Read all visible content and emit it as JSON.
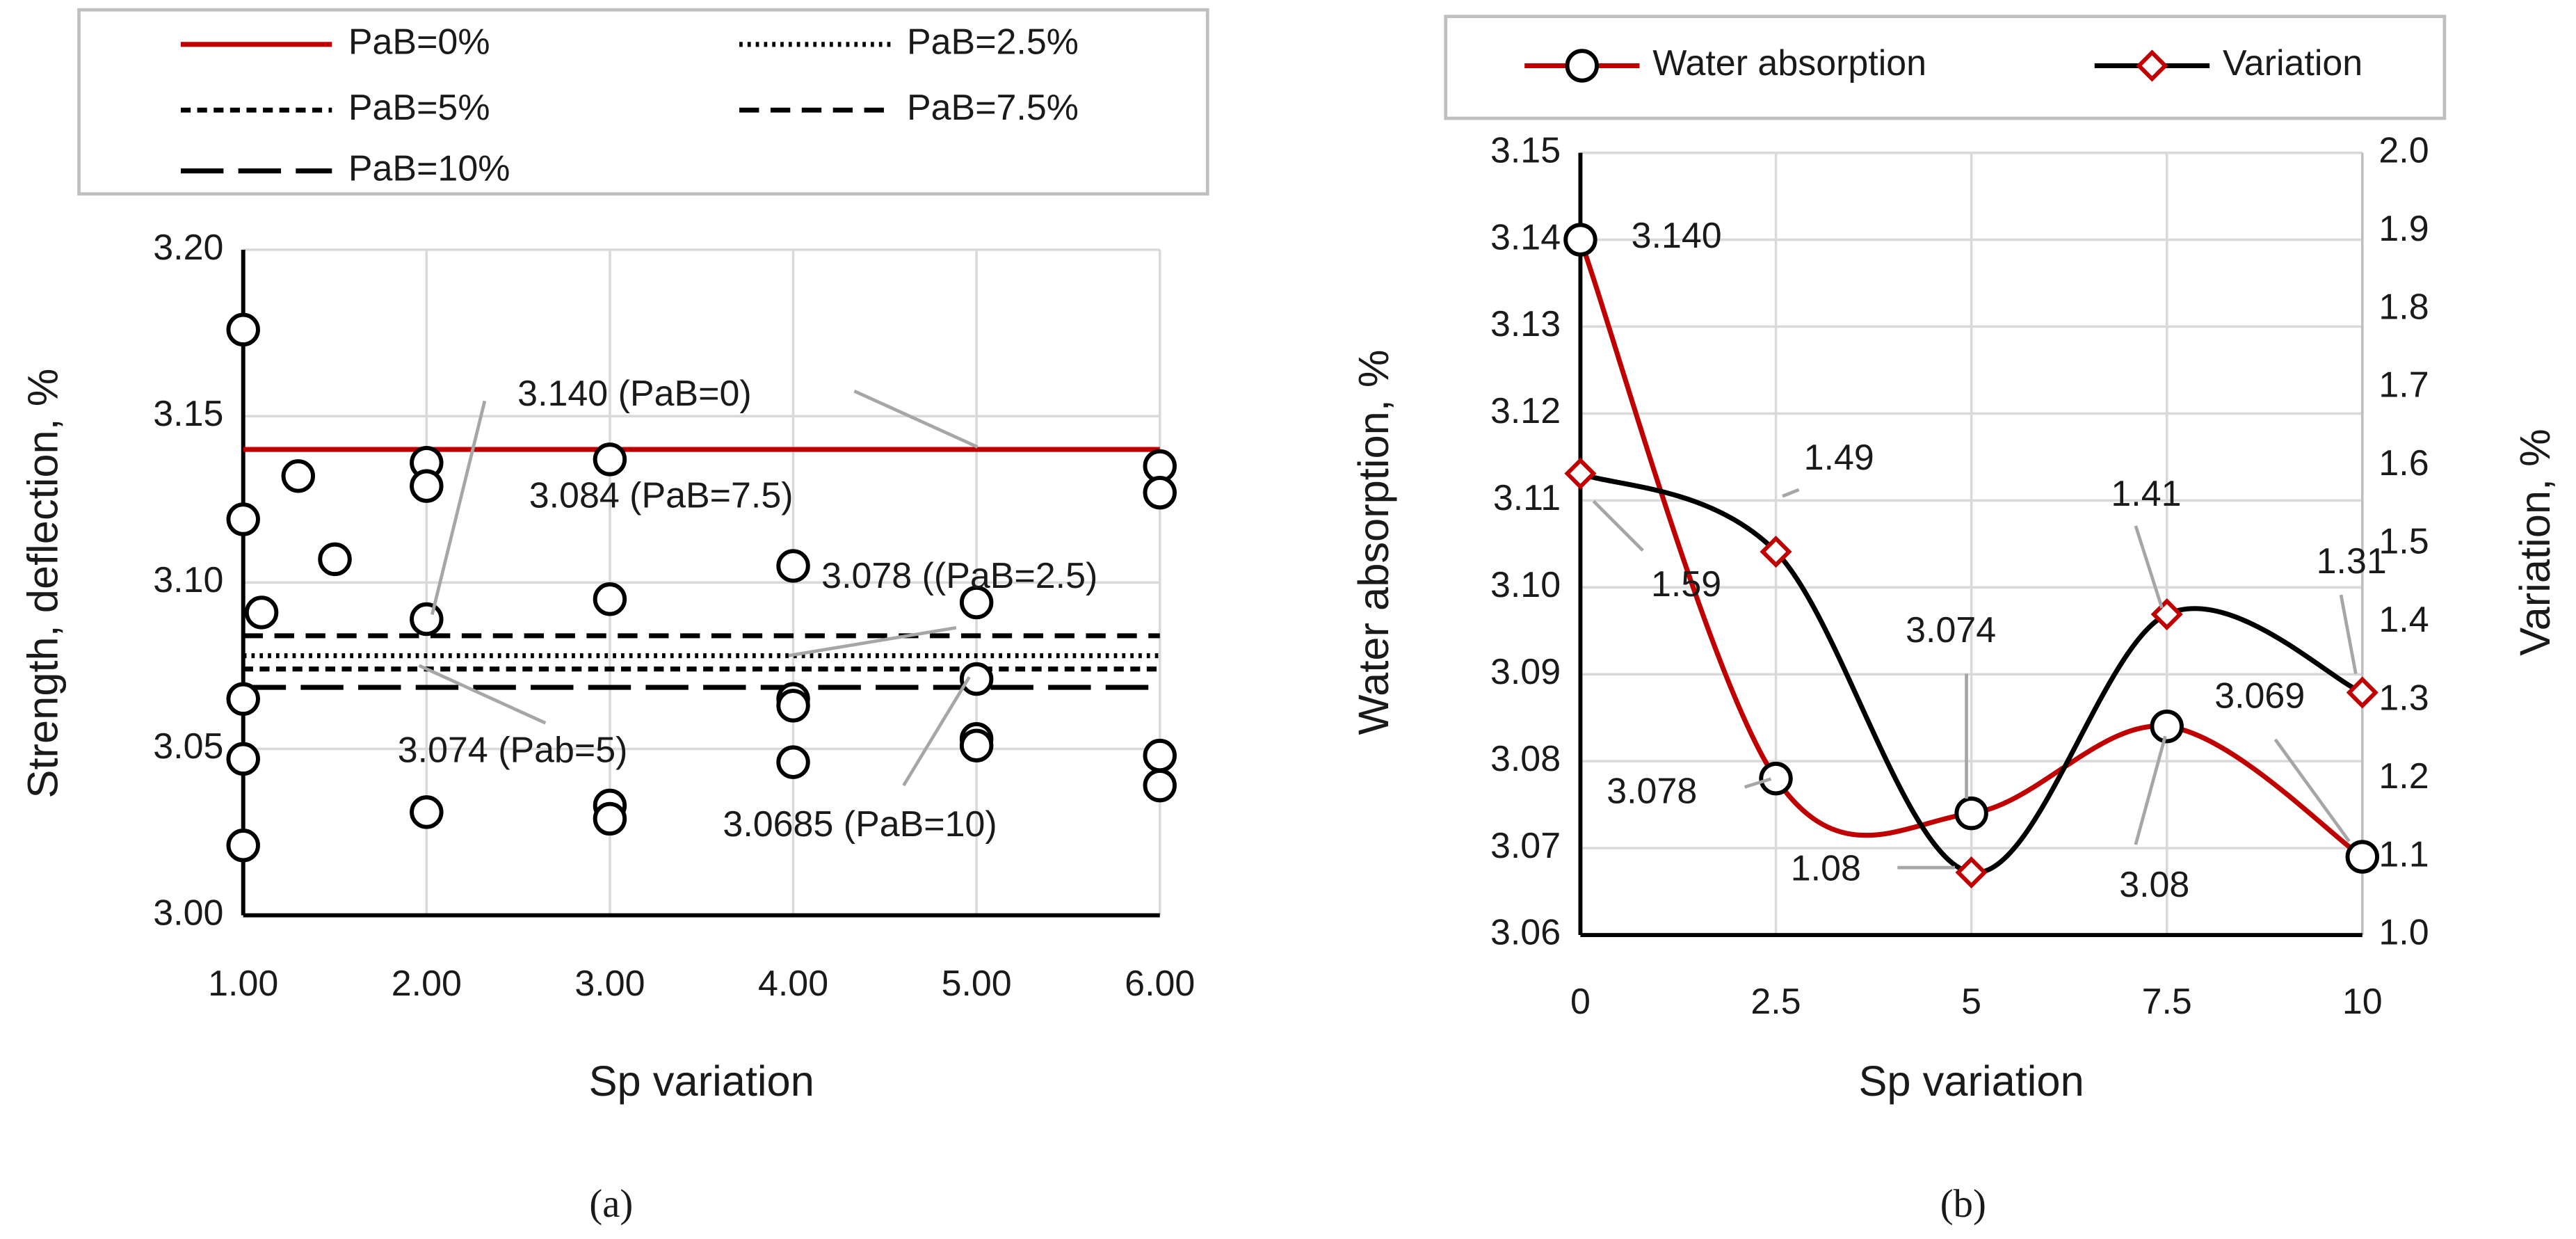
{
  "chart_data": [
    {
      "type": "scatter",
      "x_label": "Sp variation",
      "y_label": "Strength, deflection, %",
      "caption": "(a)",
      "xlim": [
        1,
        6
      ],
      "xticks": [
        {
          "value": 1,
          "label": "1.00"
        },
        {
          "value": 2,
          "label": "2.00"
        },
        {
          "value": 3,
          "label": "3.00"
        },
        {
          "value": 4,
          "label": "4.00"
        },
        {
          "value": 5,
          "label": "5.00"
        },
        {
          "value": 6,
          "label": "6.00"
        }
      ],
      "ylim": [
        3,
        3.2
      ],
      "yticks": [
        {
          "value": 3,
          "label": "3.00"
        },
        3.05,
        {
          "value": 3.1,
          "label": "3.10"
        },
        3.15,
        {
          "value": 3.2,
          "label": "3.20"
        }
      ],
      "grid": true,
      "legend": "top",
      "points": {
        "color": "#000000",
        "x": [
          1,
          1,
          1,
          1,
          1,
          1.1,
          1.3,
          1.5,
          2,
          2,
          2,
          2,
          3,
          3,
          3,
          3,
          4,
          4,
          4,
          4,
          5,
          5,
          5,
          5,
          6,
          6,
          6,
          6
        ],
        "y": [
          3.176,
          3.119,
          3.065,
          3.047,
          3.021,
          3.091,
          3.132,
          3.107,
          3.136,
          3.129,
          3.089,
          3.031,
          3.137,
          3.095,
          3.033,
          3.029,
          3.105,
          3.065,
          3.063,
          3.046,
          3.094,
          3.071,
          3.053,
          3.051,
          3.135,
          3.127,
          3.048,
          3.039
        ]
      },
      "series": [
        {
          "name": "PaB=0%",
          "color": "#c00000",
          "dash": "solid",
          "value": 3.14
        },
        {
          "name": "PaB=2.5%",
          "color": "#000000",
          "dash": "dotted",
          "value": 3.078
        },
        {
          "name": "PaB=5%",
          "color": "#000000",
          "dash": "dashed",
          "value": 3.074
        },
        {
          "name": "PaB=7.5%",
          "color": "#000000",
          "dash": "medium-dashed",
          "value": 3.084
        },
        {
          "name": "PaB=10%",
          "color": "#000000",
          "dash": "long-dashed",
          "value": 3.0685
        }
      ],
      "annotations": [
        "3.140 (PaB=0)",
        "3.084 (PaB=7.5)",
        "3.078 ((PaB=2.5)",
        "3.074 (Pab=5)",
        "3.0685 (PaB=10)"
      ]
    },
    {
      "type": "line",
      "x_label": "Sp variation",
      "y_label": "Water absorption, %",
      "y2_label": "Variation, %",
      "caption": "(b)",
      "x": [
        0,
        2.5,
        5,
        7.5,
        10
      ],
      "xlim": [
        0,
        10
      ],
      "xticks": [
        0,
        2.5,
        5,
        7.5,
        10
      ],
      "ylim": [
        3.06,
        3.15
      ],
      "yticks": [
        3.06,
        3.07,
        3.08,
        3.09,
        {
          "value": 3.1,
          "label": "3.10"
        },
        3.11,
        3.12,
        3.13,
        3.14,
        3.15
      ],
      "y2lim": [
        1,
        2
      ],
      "y2ticks": [
        {
          "value": 1,
          "label": "1.0"
        },
        1.1,
        1.2,
        1.3,
        1.4,
        1.5,
        1.6,
        1.7,
        1.8,
        1.9,
        {
          "value": 2,
          "label": "2.0"
        }
      ],
      "grid": true,
      "legend": "top",
      "smooth": true,
      "series": [
        {
          "name": "Water absorption",
          "color": "#c00000",
          "marker": "circle",
          "marker_color": "#000000",
          "axis": "y",
          "values": [
            3.14,
            3.078,
            3.074,
            3.084,
            3.069
          ],
          "value_labels": [
            "3.140",
            "3.078",
            "3.074",
            "3.08",
            "3.069"
          ]
        },
        {
          "name": "Variation",
          "color": "#000000",
          "marker": "diamond",
          "marker_color": "#c00000",
          "axis": "y2",
          "values": [
            1.59,
            1.49,
            1.08,
            1.41,
            1.31
          ]
        }
      ]
    }
  ]
}
